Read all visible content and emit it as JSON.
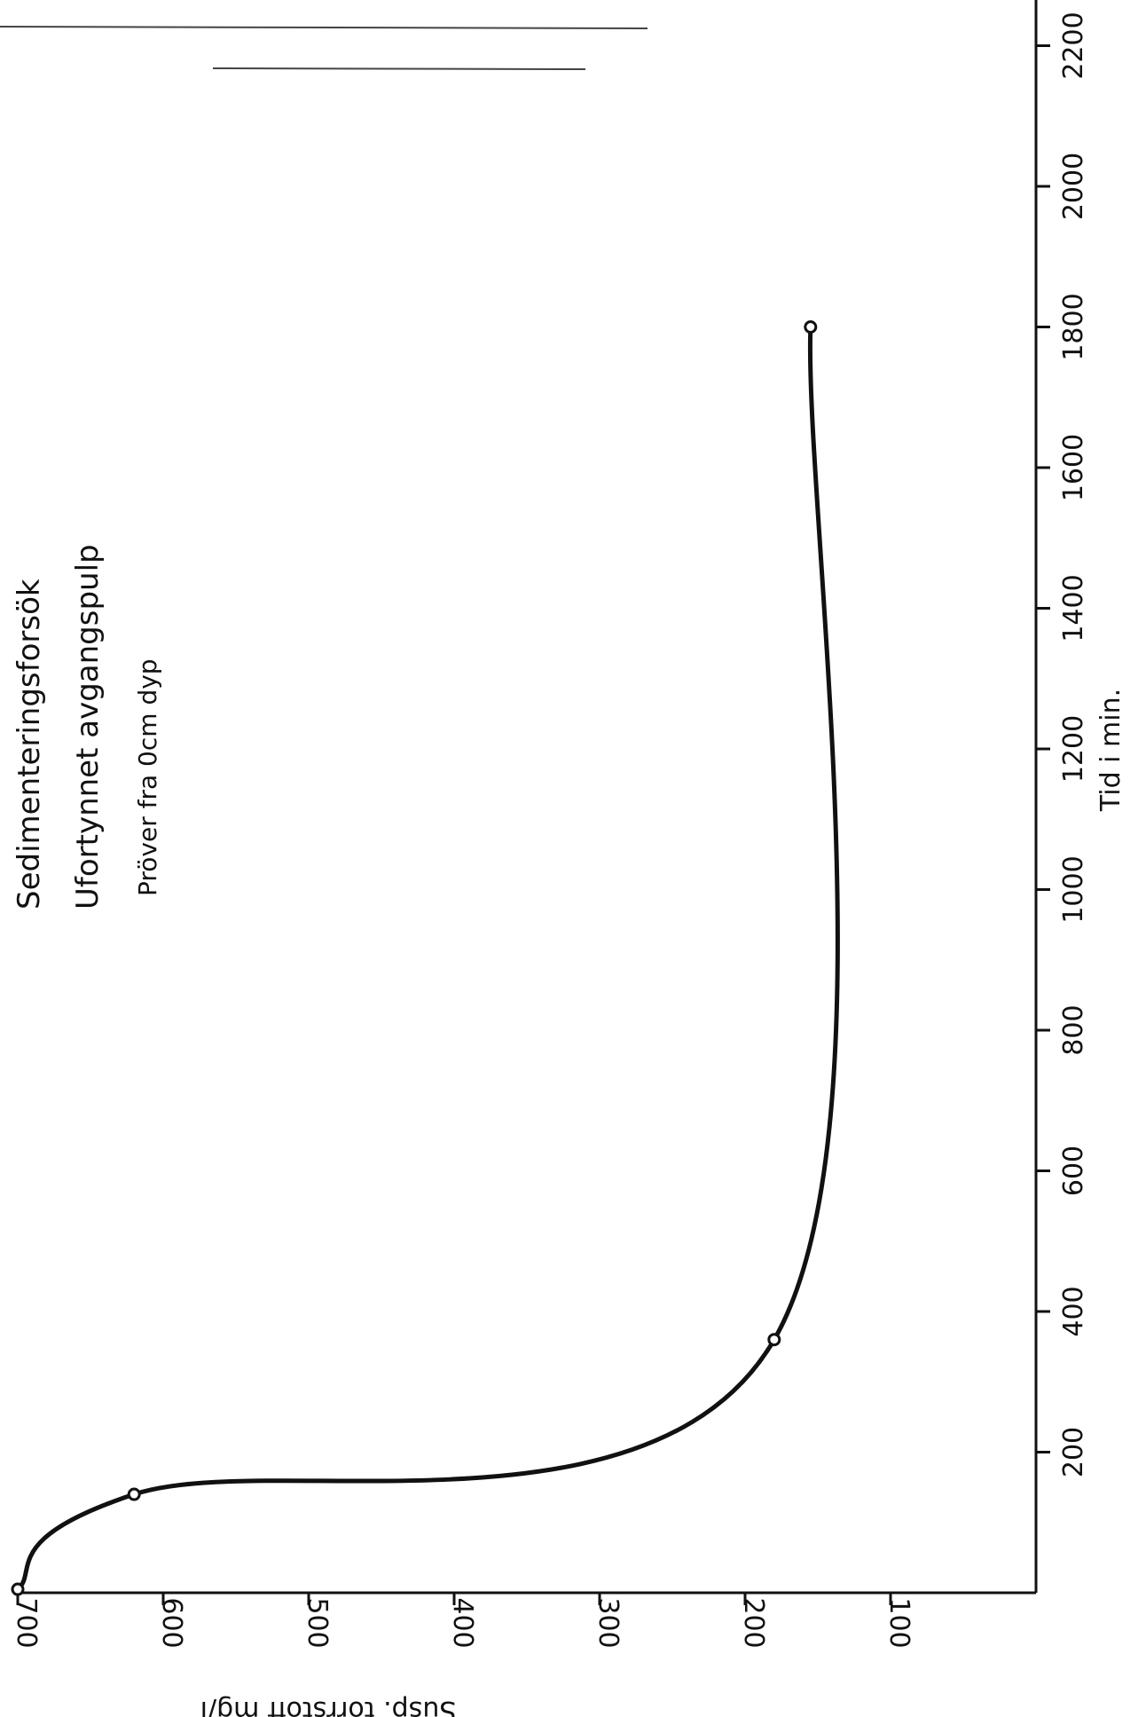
{
  "chart_data": {
    "type": "line",
    "title_lines": [
      "Sedimenteringsforsök",
      "Ufortynnet avgangspulp",
      "Pröver fra 0cm dyp"
    ],
    "xlabel": "Tid i min.",
    "ylabel": "Susp. törrstoff mg/l",
    "xlim": [
      0,
      2300
    ],
    "ylim": [
      0,
      700
    ],
    "x_ticks": [
      "200",
      "400",
      "600",
      "800",
      "1000",
      "1200",
      "1400",
      "1600",
      "1800",
      "2000",
      "2200"
    ],
    "y_ticks": [
      "700",
      "600",
      "500",
      "400",
      "300",
      "200",
      "100"
    ],
    "orientation": "rotated 90° clockwise (time axis runs up the right side)",
    "series": [
      {
        "points": [
          {
            "x": 5,
            "y": 700
          },
          {
            "x": 140,
            "y": 620
          },
          {
            "x": 360,
            "y": 180
          },
          {
            "x": 1800,
            "y": 155
          }
        ]
      }
    ],
    "grid": false,
    "legend": "none"
  }
}
